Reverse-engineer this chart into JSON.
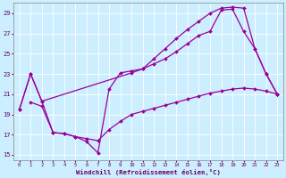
{
  "xlabel": "Windchill (Refroidissement éolien,°C)",
  "background_color": "#cceeff",
  "grid_color": "#ffffff",
  "line_color": "#990099",
  "xlim": [
    -0.5,
    23.5
  ],
  "ylim": [
    14.5,
    30.0
  ],
  "yticks": [
    15,
    17,
    19,
    21,
    23,
    25,
    27,
    29
  ],
  "xticks": [
    0,
    1,
    2,
    3,
    4,
    5,
    6,
    7,
    8,
    9,
    10,
    11,
    12,
    13,
    14,
    15,
    16,
    17,
    18,
    19,
    20,
    21,
    22,
    23
  ],
  "line1_x": [
    0,
    1,
    2,
    10,
    11,
    12,
    13,
    14,
    15,
    16,
    17,
    18,
    19,
    20,
    21,
    22,
    23
  ],
  "line1_y": [
    19.5,
    23.0,
    20.3,
    23.1,
    23.5,
    24.5,
    25.5,
    26.5,
    27.4,
    28.2,
    29.0,
    29.5,
    29.6,
    29.5,
    25.5,
    23.0,
    21.0
  ],
  "line2_x": [
    0,
    1,
    2,
    3,
    4,
    5,
    6,
    7,
    8,
    9,
    10,
    11,
    12,
    13,
    14,
    15,
    16,
    17,
    18,
    19,
    20,
    21,
    22,
    23
  ],
  "line2_y": [
    19.5,
    23.0,
    20.3,
    17.2,
    17.1,
    16.8,
    16.3,
    15.2,
    21.5,
    23.1,
    23.3,
    23.5,
    24.0,
    24.5,
    25.2,
    26.0,
    26.8,
    27.2,
    29.3,
    29.4,
    27.2,
    25.5,
    23.0,
    21.0
  ],
  "line3_x": [
    1,
    2,
    3,
    4,
    5,
    6,
    7,
    8,
    9,
    10,
    11,
    12,
    13,
    14,
    15,
    16,
    17,
    18,
    19,
    20,
    21,
    22,
    23
  ],
  "line3_y": [
    20.2,
    19.8,
    17.2,
    17.1,
    16.8,
    16.6,
    16.4,
    17.5,
    18.3,
    19.0,
    19.3,
    19.6,
    19.9,
    20.2,
    20.5,
    20.8,
    21.1,
    21.3,
    21.5,
    21.6,
    21.5,
    21.3,
    21.0
  ]
}
